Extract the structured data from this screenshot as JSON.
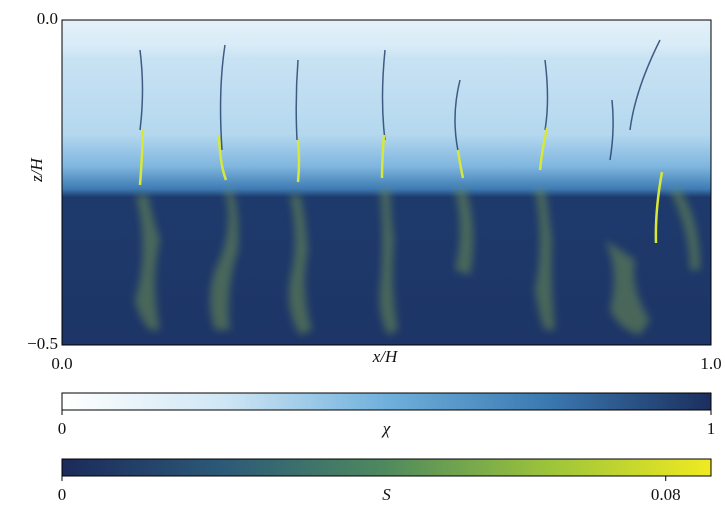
{
  "chart_data": {
    "type": "heatmap",
    "xlabel": "x/H",
    "ylabel": "z/H",
    "xlim": [
      0,
      1
    ],
    "ylim": [
      -0.5,
      0
    ],
    "xticks": [
      {
        "value": 0,
        "label": "0.0"
      },
      {
        "value": 1,
        "label": "1.0"
      }
    ],
    "yticks": [
      {
        "value": 0,
        "label": "0.0"
      },
      {
        "value": -0.5,
        "label": "−0.5"
      }
    ],
    "colorbars": [
      {
        "label": "χ",
        "lim": [
          0,
          1
        ],
        "ticks": [
          0,
          1
        ],
        "colors": [
          "#ffffff",
          "#cfe6f4",
          "#6fb0dc",
          "#3a78b0",
          "#1b2f5e"
        ]
      },
      {
        "label": "S",
        "lim": [
          0,
          0.086
        ],
        "ticks": [
          0,
          0.08
        ],
        "colors": [
          "#1b2a5a",
          "#2c5a78",
          "#4f8a5e",
          "#9cc43a",
          "#f0ea22"
        ]
      }
    ]
  }
}
